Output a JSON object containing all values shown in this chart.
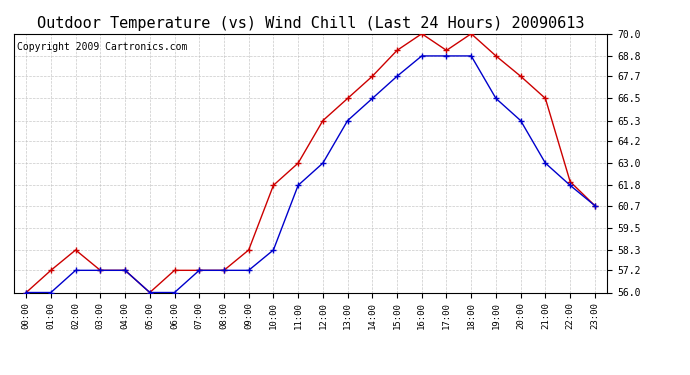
{
  "title": "Outdoor Temperature (vs) Wind Chill (Last 24 Hours) 20090613",
  "copyright": "Copyright 2009 Cartronics.com",
  "x_labels": [
    "00:00",
    "01:00",
    "02:00",
    "03:00",
    "04:00",
    "05:00",
    "06:00",
    "07:00",
    "08:00",
    "09:00",
    "10:00",
    "11:00",
    "12:00",
    "13:00",
    "14:00",
    "15:00",
    "16:00",
    "17:00",
    "18:00",
    "19:00",
    "20:00",
    "21:00",
    "22:00",
    "23:00"
  ],
  "temp": [
    56.0,
    57.2,
    58.3,
    57.2,
    57.2,
    56.0,
    57.2,
    57.2,
    57.2,
    58.3,
    61.8,
    63.0,
    65.3,
    66.5,
    67.7,
    69.1,
    70.0,
    69.1,
    70.0,
    68.8,
    67.7,
    66.5,
    62.0,
    60.7
  ],
  "windchill": [
    56.0,
    56.0,
    57.2,
    57.2,
    57.2,
    56.0,
    56.0,
    57.2,
    57.2,
    57.2,
    58.3,
    61.8,
    63.0,
    65.3,
    66.5,
    67.7,
    68.8,
    68.8,
    68.8,
    66.5,
    65.3,
    63.0,
    61.8,
    60.7
  ],
  "temp_color": "#cc0000",
  "windchill_color": "#0000cc",
  "bg_color": "#ffffff",
  "grid_color": "#bbbbbb",
  "ylim": [
    56.0,
    70.0
  ],
  "yticks": [
    56.0,
    57.2,
    58.3,
    59.5,
    60.7,
    61.8,
    63.0,
    64.2,
    65.3,
    66.5,
    67.7,
    68.8,
    70.0
  ],
  "title_fontsize": 11,
  "copyright_fontsize": 7
}
